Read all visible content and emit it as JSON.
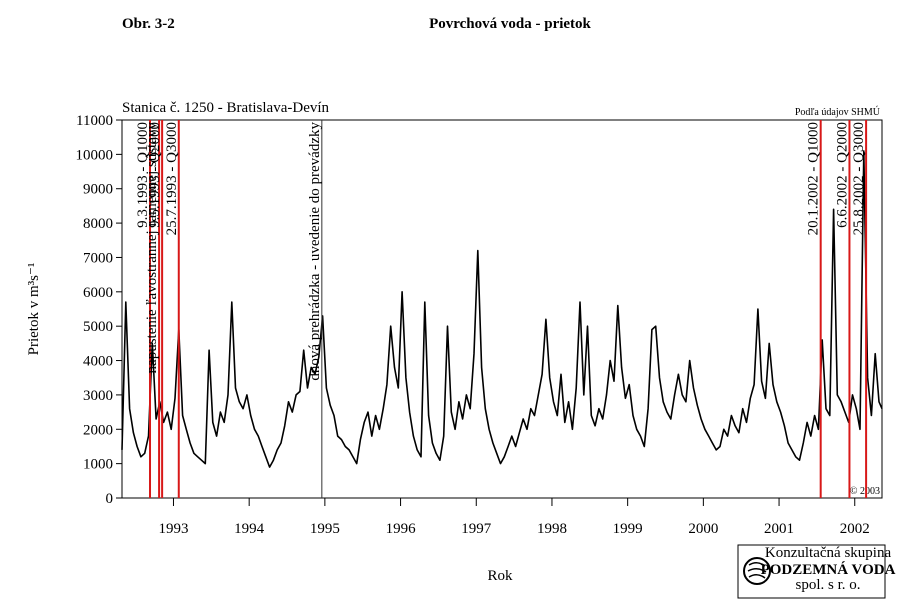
{
  "chart_data": {
    "type": "line",
    "figure_label": "Obr. 3-2",
    "title": "Povrchová voda - prietok",
    "subtitle": "Stanica č. 1250 - Bratislava-Devín",
    "source": "Podľa údajov SHMÚ",
    "copyright": "© 2003",
    "x_label": "Rok",
    "y_label": "Prietok v m³s⁻¹",
    "logo": {
      "line1": "Konzultačná skupina",
      "line2": "PODZEMNÁ VODA",
      "line3": "spol. s r. o."
    },
    "xlim": [
      1992.82,
      2002.86
    ],
    "ylim": [
      0,
      11000
    ],
    "yticks": [
      0,
      1000,
      2000,
      3000,
      4000,
      5000,
      6000,
      7000,
      8000,
      9000,
      10000,
      11000
    ],
    "xticks": [
      {
        "value": 1993.5,
        "label": "1993"
      },
      {
        "value": 1994.5,
        "label": "1994"
      },
      {
        "value": 1995.5,
        "label": "1995"
      },
      {
        "value": 1996.5,
        "label": "1996"
      },
      {
        "value": 1997.5,
        "label": "1997"
      },
      {
        "value": 1998.5,
        "label": "1998"
      },
      {
        "value": 1999.5,
        "label": "1999"
      },
      {
        "value": 2000.5,
        "label": "2000"
      },
      {
        "value": 2001.5,
        "label": "2001"
      },
      {
        "value": 2002.5,
        "label": "2002"
      }
    ],
    "annotations": [
      {
        "x": 1993.19,
        "label": "9.3.1993 - Q1000",
        "color": "#d81818"
      },
      {
        "x": 1993.31,
        "label": "napustenie ľavostrannej ramennej sústavy",
        "color": "#d81818"
      },
      {
        "x": 1993.35,
        "label": "9.5.1993 - Q2000",
        "color": "#d81818"
      },
      {
        "x": 1993.57,
        "label": "25.7.1993 - Q3000",
        "color": "#d81818"
      },
      {
        "x": 1995.46,
        "label": "dnová prehrádzka - uvedenie do prevádzky",
        "color": "#333333"
      },
      {
        "x": 2002.05,
        "label": "20.1.2002 - Q1000",
        "color": "#d81818"
      },
      {
        "x": 2002.43,
        "label": "6.6.2002 - Q2000",
        "color": "#d81818"
      },
      {
        "x": 2002.65,
        "label": "25.8.2002 - Q3000",
        "color": "#d81818"
      }
    ],
    "color": "#000000",
    "x": [
      1992.82,
      1992.87,
      1992.92,
      1992.97,
      1993.02,
      1993.07,
      1993.12,
      1993.17,
      1993.22,
      1993.27,
      1993.32,
      1993.37,
      1993.42,
      1993.47,
      1993.52,
      1993.57,
      1993.62,
      1993.67,
      1993.72,
      1993.77,
      1993.82,
      1993.87,
      1993.92,
      1993.97,
      1994.02,
      1994.07,
      1994.12,
      1994.17,
      1994.22,
      1994.27,
      1994.32,
      1994.37,
      1994.42,
      1994.47,
      1994.52,
      1994.57,
      1994.62,
      1994.67,
      1994.72,
      1994.77,
      1994.82,
      1994.87,
      1994.92,
      1994.97,
      1995.02,
      1995.07,
      1995.12,
      1995.17,
      1995.22,
      1995.27,
      1995.32,
      1995.37,
      1995.42,
      1995.47,
      1995.52,
      1995.57,
      1995.62,
      1995.67,
      1995.72,
      1995.77,
      1995.82,
      1995.87,
      1995.92,
      1995.97,
      1996.02,
      1996.07,
      1996.12,
      1996.17,
      1996.22,
      1996.27,
      1996.32,
      1996.37,
      1996.42,
      1996.47,
      1996.52,
      1996.57,
      1996.62,
      1996.67,
      1996.72,
      1996.77,
      1996.82,
      1996.87,
      1996.92,
      1996.97,
      1997.02,
      1997.07,
      1997.12,
      1997.17,
      1997.22,
      1997.27,
      1997.32,
      1997.37,
      1997.42,
      1997.47,
      1997.52,
      1997.57,
      1997.62,
      1997.67,
      1997.72,
      1997.77,
      1997.82,
      1997.87,
      1997.92,
      1997.97,
      1998.02,
      1998.07,
      1998.12,
      1998.17,
      1998.22,
      1998.27,
      1998.32,
      1998.37,
      1998.42,
      1998.47,
      1998.52,
      1998.57,
      1998.62,
      1998.67,
      1998.72,
      1998.77,
      1998.82,
      1998.87,
      1998.92,
      1998.97,
      1999.02,
      1999.07,
      1999.12,
      1999.17,
      1999.22,
      1999.27,
      1999.32,
      1999.37,
      1999.42,
      1999.47,
      1999.52,
      1999.57,
      1999.62,
      1999.67,
      1999.72,
      1999.77,
      1999.82,
      1999.87,
      1999.92,
      1999.97,
      2000.02,
      2000.07,
      2000.12,
      2000.17,
      2000.22,
      2000.27,
      2000.32,
      2000.37,
      2000.42,
      2000.47,
      2000.52,
      2000.57,
      2000.62,
      2000.67,
      2000.72,
      2000.77,
      2000.82,
      2000.87,
      2000.92,
      2000.97,
      2001.02,
      2001.07,
      2001.12,
      2001.17,
      2001.22,
      2001.27,
      2001.32,
      2001.37,
      2001.42,
      2001.47,
      2001.52,
      2001.57,
      2001.62,
      2001.67,
      2001.72,
      2001.77,
      2001.82,
      2001.87,
      2001.92,
      2001.97,
      2002.02,
      2002.07,
      2002.12,
      2002.17,
      2002.22,
      2002.27,
      2002.32,
      2002.37,
      2002.42,
      2002.47,
      2002.52,
      2002.57,
      2002.62,
      2002.67,
      2002.72,
      2002.77,
      2002.82,
      2002.86
    ],
    "values": [
      1400,
      5700,
      2600,
      1900,
      1500,
      1200,
      1300,
      1800,
      4500,
      2300,
      2800,
      2200,
      2500,
      2000,
      2900,
      4900,
      2400,
      2000,
      1600,
      1300,
      1200,
      1100,
      1000,
      4300,
      2200,
      1800,
      2500,
      2200,
      3000,
      5700,
      3200,
      2800,
      2600,
      3000,
      2400,
      2000,
      1800,
      1500,
      1200,
      900,
      1100,
      1400,
      1600,
      2100,
      2800,
      2500,
      3000,
      3100,
      4300,
      3200,
      3800,
      3600,
      4100,
      5300,
      3200,
      2700,
      2400,
      1800,
      1700,
      1500,
      1400,
      1200,
      1000,
      1700,
      2200,
      2500,
      1800,
      2400,
      2000,
      2600,
      3300,
      5000,
      3800,
      3200,
      6000,
      3500,
      2500,
      1800,
      1400,
      1200,
      5700,
      2400,
      1600,
      1300,
      1100,
      1800,
      5000,
      2500,
      2000,
      2800,
      2300,
      3000,
      2600,
      4200,
      7200,
      3800,
      2600,
      2000,
      1600,
      1300,
      1000,
      1200,
      1500,
      1800,
      1500,
      1900,
      2300,
      2000,
      2600,
      2400,
      3000,
      3600,
      5200,
      3500,
      2800,
      2400,
      3600,
      2200,
      2800,
      2000,
      3200,
      5700,
      3000,
      5000,
      2400,
      2100,
      2600,
      2300,
      3000,
      4000,
      3400,
      5600,
      3800,
      2900,
      3300,
      2400,
      2000,
      1800,
      1500,
      2600,
      4900,
      5000,
      3500,
      2800,
      2500,
      2300,
      3000,
      3600,
      3000,
      2800,
      4000,
      3200,
      2700,
      2300,
      2000,
      1800,
      1600,
      1400,
      1500,
      2000,
      1800,
      2400,
      2100,
      1900,
      2600,
      2200,
      2900,
      3300,
      5500,
      3400,
      2900,
      4500,
      3300,
      2800,
      2500,
      2100,
      1600,
      1400,
      1200,
      1100,
      1600,
      2200,
      1800,
      2400,
      2000,
      4600,
      2600,
      2400,
      8400,
      3000,
      2800,
      2500,
      2200,
      3000,
      2600,
      2000,
      10100,
      3500,
      2400,
      4200,
      2800,
      2600
    ]
  }
}
